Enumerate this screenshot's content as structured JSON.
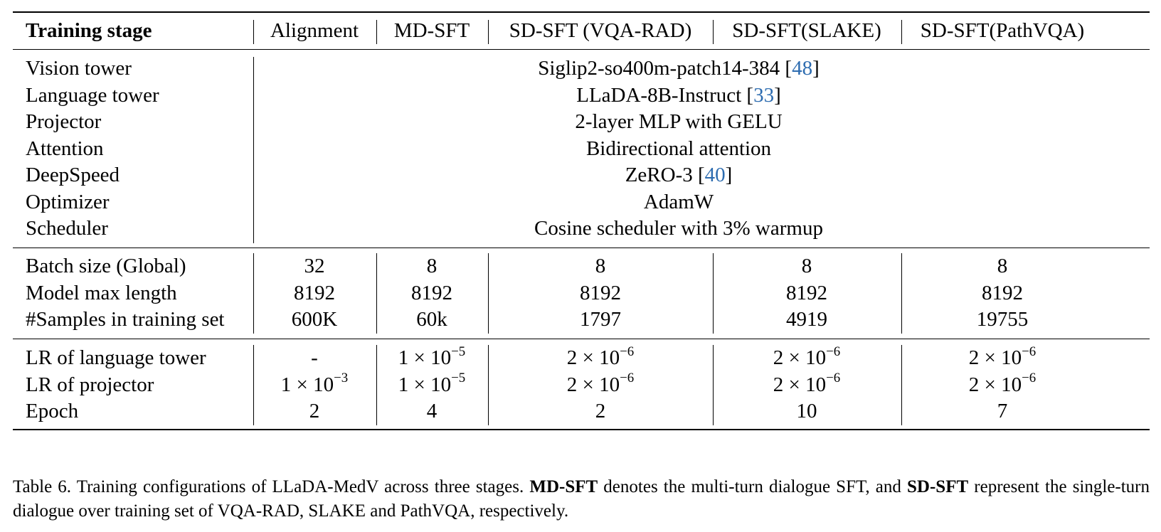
{
  "table": {
    "header": {
      "stage_label": "Training stage",
      "columns": [
        "Alignment",
        "MD-SFT",
        "SD-SFT (VQA-RAD)",
        "SD-SFT(SLAKE)",
        "SD-SFT(PathVQA)"
      ]
    },
    "shared_rows": [
      {
        "label": "Vision tower",
        "value": "Siglip2-so400m-patch14-384 [",
        "cite": "48",
        "tail": "]"
      },
      {
        "label": "Language tower",
        "value": "LLaDA-8B-Instruct [",
        "cite": "33",
        "tail": "]"
      },
      {
        "label": "Projector",
        "value": "2-layer MLP with GELU",
        "cite": "",
        "tail": ""
      },
      {
        "label": "Attention",
        "value": "Bidirectional attention",
        "cite": "",
        "tail": ""
      },
      {
        "label": "DeepSpeed",
        "value": "ZeRO-3 [",
        "cite": "40",
        "tail": "]"
      },
      {
        "label": "Optimizer",
        "value": "AdamW",
        "cite": "",
        "tail": ""
      },
      {
        "label": "Scheduler",
        "value": "Cosine scheduler with 3% warmup",
        "cite": "",
        "tail": ""
      }
    ],
    "data_rows": [
      {
        "label": "Batch size (Global)",
        "values": [
          "32",
          "8",
          "8",
          "8",
          "8"
        ]
      },
      {
        "label": "Model max length",
        "values": [
          "8192",
          "8192",
          "8192",
          "8192",
          "8192"
        ]
      },
      {
        "label": "#Samples in training set",
        "values": [
          "600K",
          "60k",
          "1797",
          "4919",
          "19755"
        ]
      }
    ],
    "lr_rows": [
      {
        "label": "LR of language tower",
        "values": [
          {
            "text": "-"
          },
          {
            "base": "1 × 10",
            "exp": "−5"
          },
          {
            "base": "2 × 10",
            "exp": "−6"
          },
          {
            "base": "2 × 10",
            "exp": "−6"
          },
          {
            "base": "2 × 10",
            "exp": "−6"
          }
        ]
      },
      {
        "label": "LR of projector",
        "values": [
          {
            "base": "1 × 10",
            "exp": "−3"
          },
          {
            "base": "1 × 10",
            "exp": "−5"
          },
          {
            "base": "2 × 10",
            "exp": "−6"
          },
          {
            "base": "2 × 10",
            "exp": "−6"
          },
          {
            "base": "2 × 10",
            "exp": "−6"
          }
        ]
      },
      {
        "label": "Epoch",
        "values": [
          {
            "text": "2"
          },
          {
            "text": "4"
          },
          {
            "text": "2"
          },
          {
            "text": "10"
          },
          {
            "text": "7"
          }
        ]
      }
    ]
  },
  "caption": {
    "prefix": "Table 6.  Training configurations of LLaDA-MedV across three stages. ",
    "bold1": "MD-SFT",
    "mid": " denotes the multi-turn dialogue SFT, and ",
    "bold2": "SD-SFT",
    "suffix": " represent the single-turn dialogue over training set of VQA-RAD, SLAKE and PathVQA, respectively."
  }
}
